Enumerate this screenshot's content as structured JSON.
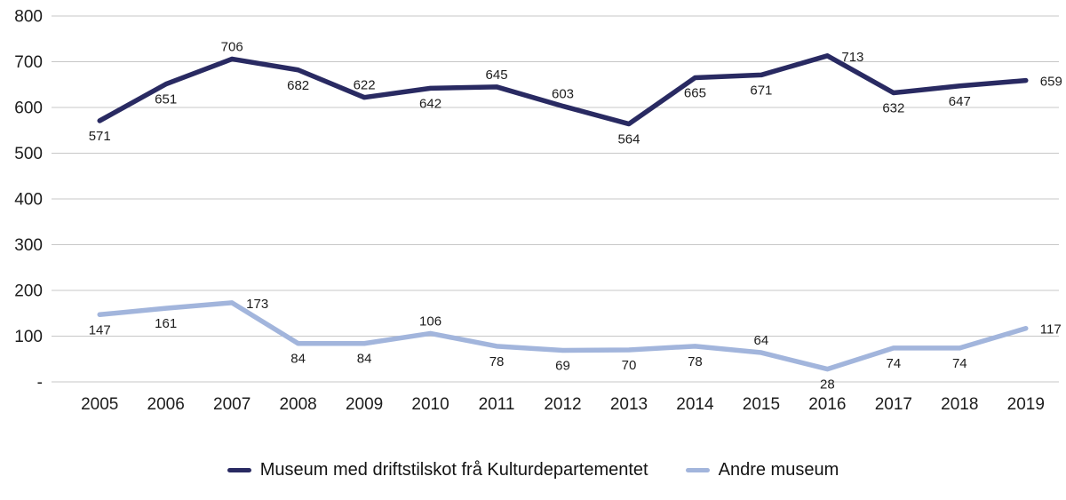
{
  "chart_data": {
    "type": "line",
    "title": "",
    "categories": [
      "2005",
      "2006",
      "2007",
      "2008",
      "2009",
      "2010",
      "2011",
      "2012",
      "2013",
      "2014",
      "2015",
      "2016",
      "2017",
      "2018",
      "2019"
    ],
    "series": [
      {
        "name": "Museum med driftstilskot frå Kulturdepartementet",
        "color": "#292a62",
        "values": [
          571,
          651,
          706,
          682,
          622,
          642,
          645,
          603,
          564,
          665,
          671,
          713,
          632,
          647,
          659
        ],
        "label_positions": [
          "below",
          "below",
          "above",
          "below",
          "above",
          "below",
          "above",
          "above",
          "below",
          "below",
          "below",
          "right",
          "below",
          "below",
          "right"
        ]
      },
      {
        "name": "Andre museum",
        "color": "#a2b5dc",
        "values": [
          147,
          161,
          173,
          84,
          84,
          106,
          78,
          69,
          70,
          78,
          64,
          28,
          74,
          74,
          117
        ],
        "label_positions": [
          "below",
          "below",
          "right",
          "below",
          "below",
          "above",
          "below",
          "below",
          "below",
          "below",
          "above",
          "below",
          "below",
          "below",
          "right"
        ]
      }
    ],
    "ylim": [
      0,
      800
    ],
    "y_tick_values": [
      800,
      700,
      600,
      500,
      400,
      300,
      200,
      100,
      0
    ],
    "y_tick_labels": [
      "800",
      "700",
      "600",
      "500",
      "400",
      "300",
      "200",
      "100",
      "-"
    ],
    "xlabel": "",
    "ylabel": "",
    "grid": true,
    "gridline_color": "#c7c7c7",
    "axis_text_color": "#1c1c1c",
    "data_label_color": "#141414",
    "legend_position": "bottom"
  }
}
